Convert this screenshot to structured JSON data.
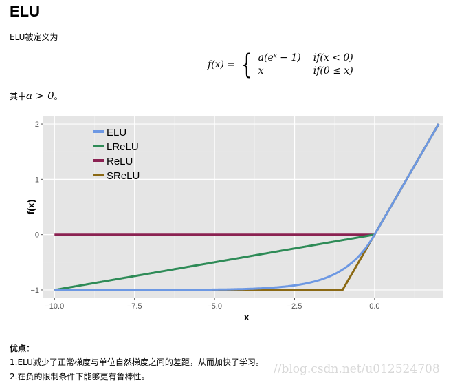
{
  "title": "ELU",
  "intro": "ELU被定义为",
  "formula": {
    "lhs": "f(x) =",
    "case1_expr": "a(eˣ − 1)",
    "case1_cond": "if(x < 0)",
    "case2_expr": "x",
    "case2_cond": "if(0 ≤ x)"
  },
  "condition_prefix": "其中",
  "condition_math": "a > 0",
  "condition_suffix": "。",
  "advantages": {
    "heading": "优点：",
    "items": [
      "1.ELU减少了正常梯度与单位自然梯度之间的差距，从而加快了学习。",
      "2.在负的限制条件下能够更有鲁棒性。"
    ]
  },
  "watermark": "//blog.csdn.net/u012524708",
  "chart_data": {
    "type": "line",
    "xlabel": "x",
    "ylabel": "f(x)",
    "xlim": [
      -10.35,
      2.15
    ],
    "ylim": [
      -1.15,
      2.15
    ],
    "xticks": [
      -10,
      -7.5,
      -5,
      -2.5,
      0
    ],
    "xtick_labels": [
      "−10.0",
      "−7.5",
      "−5.0",
      "−2.5",
      "0.0"
    ],
    "yticks": [
      -1,
      0,
      1,
      2
    ],
    "ytick_labels": [
      "−1",
      "0",
      "1",
      "2"
    ],
    "grid": true,
    "legend_position": "top-left",
    "x_range": [
      -10,
      2
    ],
    "series": [
      {
        "name": "ELU",
        "color": "#6d98e3",
        "formula": "x<0 ? exp(x)-1 : x"
      },
      {
        "name": "LReLU",
        "color": "#2e8b57",
        "formula": "x<0 ? 0.1x : x"
      },
      {
        "name": "ReLU",
        "color": "#8b2252",
        "formula": "max(0,x)"
      },
      {
        "name": "SReLU",
        "color": "#8b6914",
        "formula": "x<-1 ? -1 : x"
      }
    ]
  }
}
